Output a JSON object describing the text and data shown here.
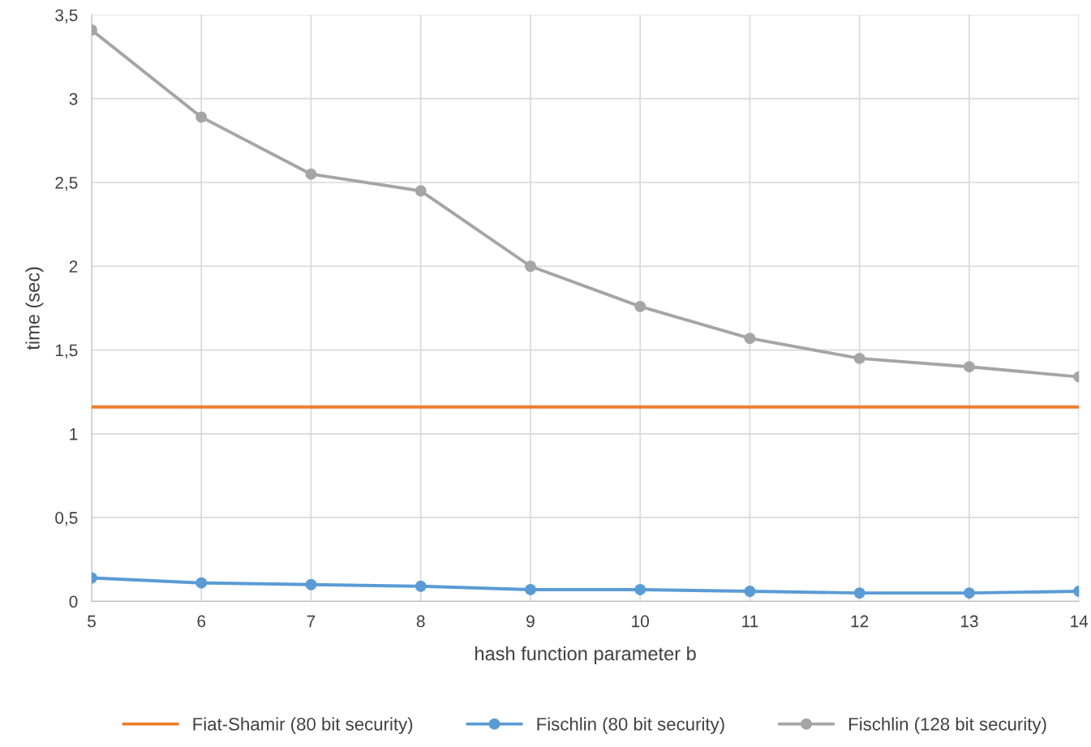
{
  "chart_data": {
    "type": "line",
    "xlabel": "hash function parameter b",
    "ylabel": "time (sec)",
    "x": [
      5,
      6,
      7,
      8,
      9,
      10,
      11,
      12,
      13,
      14
    ],
    "series": [
      {
        "name": "Fiat-Shamir (80 bit security)",
        "color": "#ed7d31",
        "marker": "none",
        "values": [
          1.16,
          1.16,
          1.16,
          1.16,
          1.16,
          1.16,
          1.16,
          1.16,
          1.16,
          1.16
        ]
      },
      {
        "name": "Fischlin (80 bit security)",
        "color": "#5b9bd5",
        "marker": "circle",
        "values": [
          0.14,
          0.11,
          0.1,
          0.09,
          0.07,
          0.07,
          0.06,
          0.05,
          0.05,
          0.06
        ]
      },
      {
        "name": "Fischlin (128 bit security)",
        "color": "#a5a5a5",
        "marker": "circle",
        "values": [
          3.41,
          2.89,
          2.55,
          2.45,
          2.0,
          1.76,
          1.57,
          1.45,
          1.4,
          1.34
        ]
      }
    ],
    "xlim": [
      5,
      14
    ],
    "xticks": [
      5,
      6,
      7,
      8,
      9,
      10,
      11,
      12,
      13,
      14
    ],
    "ylim": [
      0,
      3.5
    ],
    "yticks": [
      0,
      {
        "value": 0.5,
        "label": "0,5"
      },
      1,
      {
        "value": 1.5,
        "label": "1,5"
      },
      2,
      {
        "value": 2.5,
        "label": "2,5"
      },
      3,
      {
        "value": 3.5,
        "label": "3,5"
      }
    ],
    "grid": true,
    "legend": "bottom",
    "line_style": "solid"
  }
}
